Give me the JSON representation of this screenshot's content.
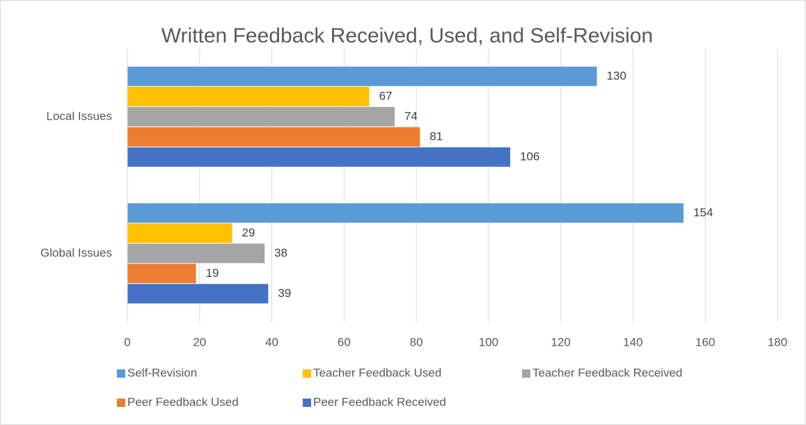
{
  "chart_data": {
    "type": "hbar",
    "title": "Written Feedback Received, Used, and Self-Revision",
    "categories": [
      "Local Issues",
      "Global Issues"
    ],
    "series": [
      {
        "name": "Self-Revision",
        "color": "#5b9bd5",
        "values": [
          130,
          154
        ]
      },
      {
        "name": "Teacher Feedback Used",
        "color": "#ffc000",
        "values": [
          67,
          29
        ]
      },
      {
        "name": "Teacher Feedback Received",
        "color": "#a5a5a5",
        "values": [
          74,
          38
        ]
      },
      {
        "name": "Peer Feedback Used",
        "color": "#ed7d31",
        "values": [
          81,
          19
        ]
      },
      {
        "name": "Peer Feedback Received",
        "color": "#4472c4",
        "values": [
          106,
          39
        ]
      }
    ],
    "xlim": [
      0,
      180
    ],
    "xticks": [
      0,
      20,
      40,
      60,
      80,
      100,
      120,
      140,
      160,
      180
    ],
    "grid": true,
    "legend": "bottom"
  }
}
